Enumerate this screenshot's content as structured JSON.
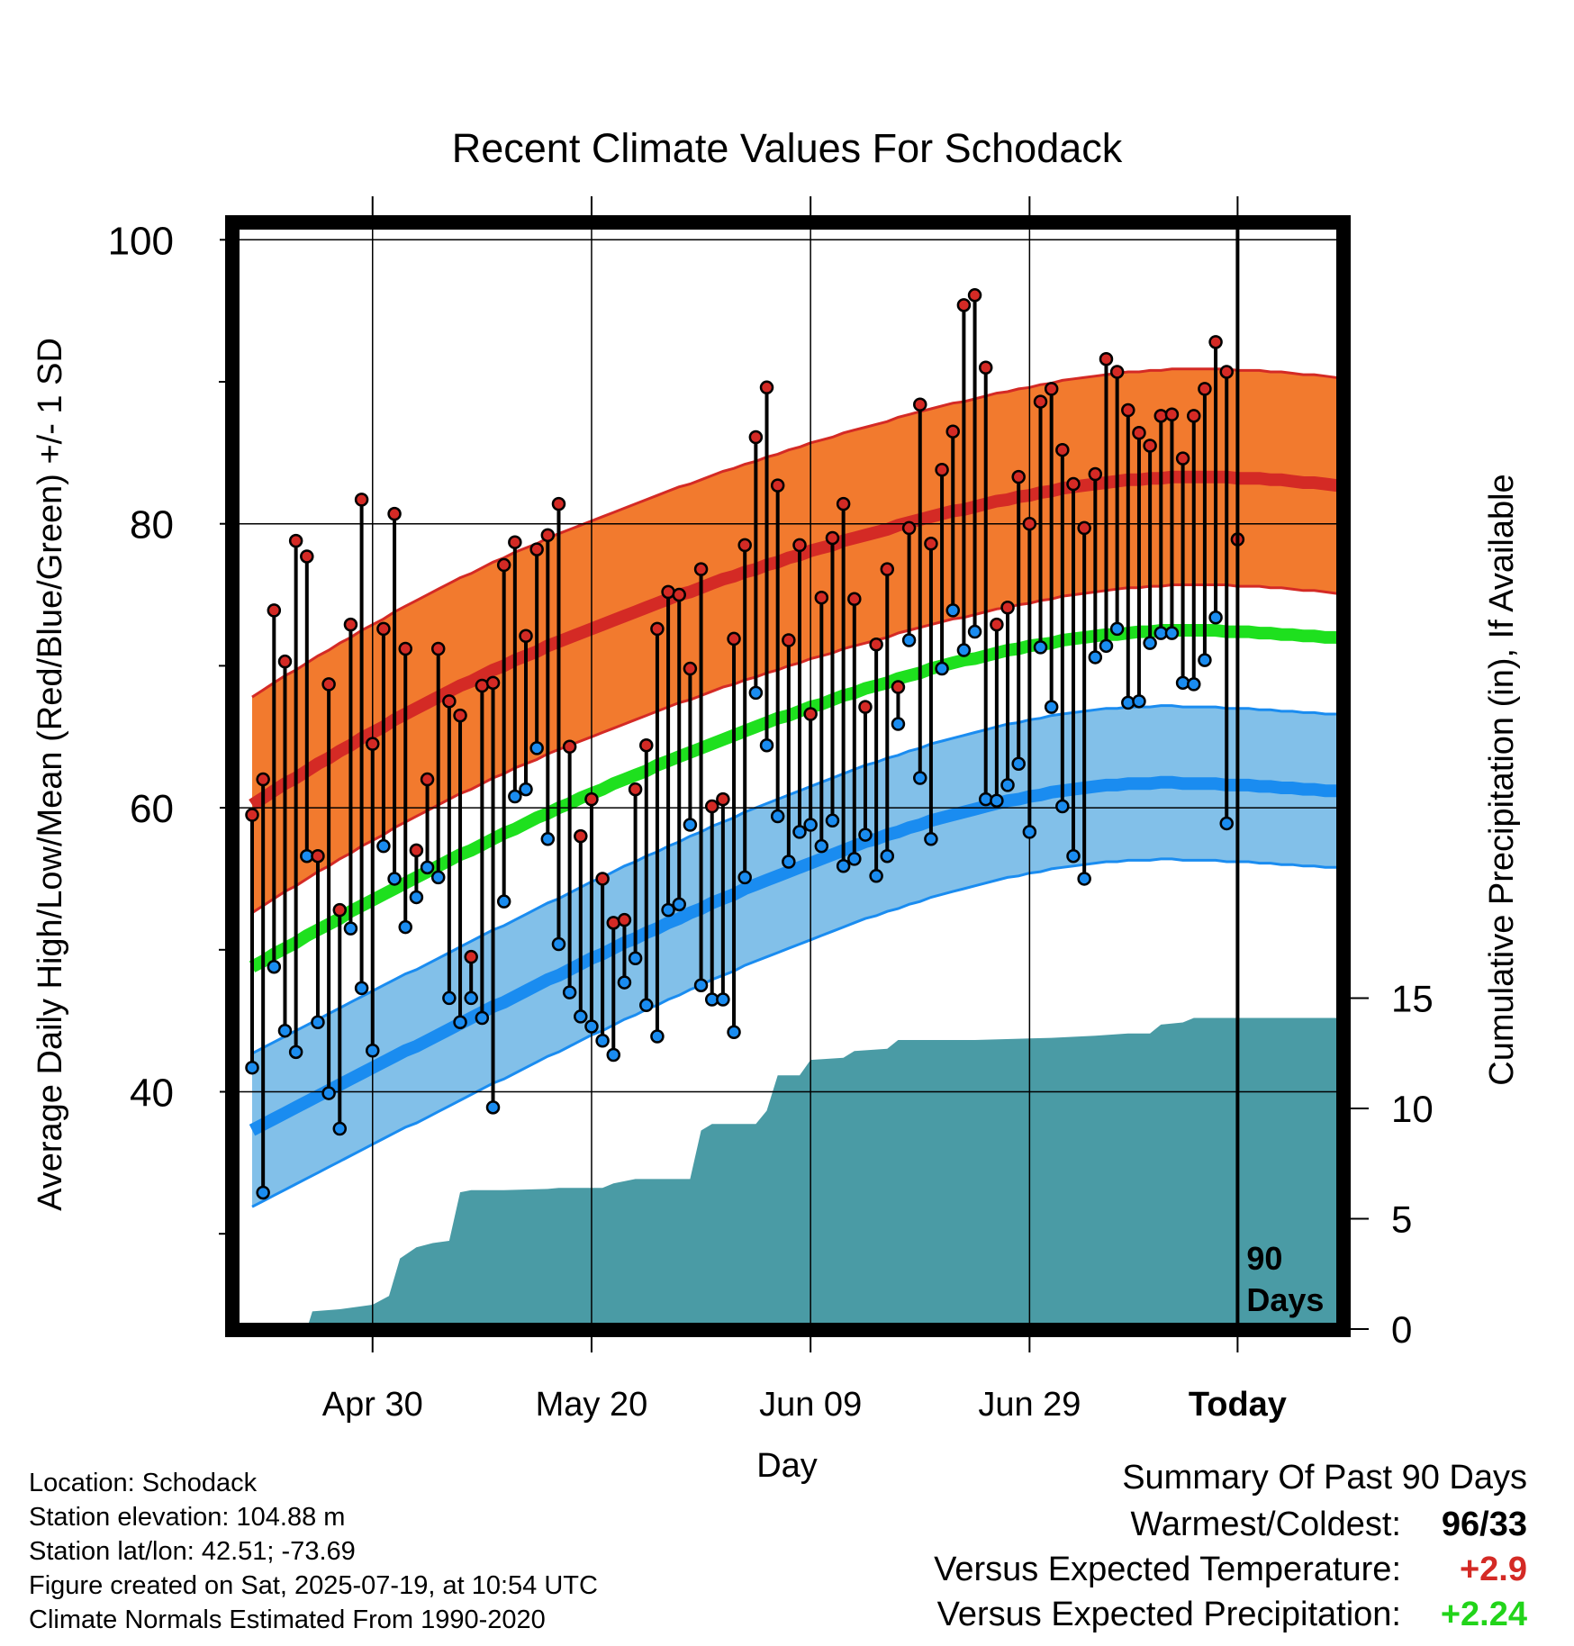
{
  "chart_data": {
    "type": "line",
    "title": "Recent Climate Values For Schodack",
    "xlabel": "Day",
    "ylabel_left": "Average Daily High/Low/Mean (Red/Blue/Green) +/- 1 SD",
    "ylabel_right": "Cumulative Precipitation (in), If Available",
    "x_tick_labels": [
      "Apr 30",
      "May 20",
      "Jun 09",
      "Jun 29",
      "Today"
    ],
    "y_ticks_left": [
      40,
      60,
      80,
      100
    ],
    "y_ticks_right": [
      0,
      5,
      10,
      15
    ],
    "ylim_left": [
      23,
      101.5
    ],
    "ylim_right": [
      0,
      20
    ],
    "period_label": "90 Days",
    "x_axis_unit": "days since first plotted day (day 0 = Apr 19)",
    "xlim": [
      -1,
      100
    ],
    "today_day": 90,
    "daily_high": [
      59.5,
      62,
      73.9,
      70.3,
      78.8,
      77.7,
      56.6,
      68.7,
      52.8,
      72.9,
      81.7,
      64.5,
      72.6,
      80.7,
      71.2,
      57,
      62,
      71.2,
      67.5,
      66.5,
      49.5,
      68.6,
      68.8,
      77.1,
      78.7,
      72.1,
      78.2,
      79.2,
      81.4,
      64.3,
      58,
      60.6,
      55,
      51.9,
      52.1,
      61.3,
      64.4,
      72.6,
      75.2,
      75,
      69.8,
      76.8,
      60.1,
      60.6,
      71.9,
      78.5,
      86.1,
      89.6,
      82.7,
      71.8,
      78.5,
      66.6,
      74.8,
      79,
      81.4,
      74.7,
      67.1,
      71.5,
      76.8,
      68.5,
      79.7,
      88.4,
      78.6,
      83.8,
      86.5,
      95.4,
      96.1,
      91,
      72.9,
      74.1,
      83.3,
      80,
      88.6,
      89.5,
      85.2,
      82.8,
      79.7,
      83.5,
      91.6,
      90.7,
      88,
      86.4,
      85.5,
      87.6,
      87.7,
      84.6,
      87.6,
      89.5,
      92.8,
      90.7,
      78.9
    ],
    "daily_low": [
      41.7,
      32.9,
      48.8,
      44.3,
      42.8,
      56.6,
      44.9,
      39.9,
      37.4,
      51.5,
      47.3,
      42.9,
      57.3,
      55,
      51.6,
      53.7,
      55.8,
      55.1,
      46.6,
      44.9,
      46.6,
      45.2,
      38.9,
      53.4,
      60.8,
      61.3,
      64.2,
      57.8,
      50.4,
      47,
      45.3,
      44.6,
      43.6,
      42.6,
      47.7,
      49.4,
      46.1,
      43.9,
      52.8,
      53.2,
      58.8,
      47.5,
      46.5,
      46.5,
      44.2,
      55.1,
      68.1,
      64.4,
      59.4,
      56.2,
      58.3,
      58.8,
      57.3,
      59.1,
      55.9,
      56.4,
      58.1,
      55.2,
      56.6,
      65.9,
      71.8,
      62.1,
      57.8,
      69.8,
      73.9,
      71.1,
      72.4,
      60.6,
      60.5,
      61.6,
      63.1,
      58.3,
      71.3,
      67.1,
      60.1,
      56.6,
      55,
      70.6,
      71.4,
      72.6,
      67.4,
      67.5,
      71.6,
      72.3,
      72.3,
      68.8,
      68.7,
      70.4,
      73.4,
      58.9
    ],
    "normal_high": [
      60.2,
      60.7,
      61.2,
      61.7,
      62.1,
      62.6,
      63.1,
      63.5,
      64,
      64.4,
      64.9,
      65.3,
      65.7,
      66.2,
      66.6,
      67,
      67.4,
      67.8,
      68.2,
      68.6,
      68.9,
      69.3,
      69.7,
      70,
      70.4,
      70.7,
      71,
      71.4,
      71.7,
      72,
      72.3,
      72.6,
      72.9,
      73.2,
      73.5,
      73.8,
      74.1,
      74.4,
      74.7,
      75,
      75.2,
      75.5,
      75.8,
      76.1,
      76.3,
      76.6,
      76.8,
      77.1,
      77.3,
      77.6,
      77.8,
      78.1,
      78.3,
      78.5,
      78.8,
      79,
      79.2,
      79.4,
      79.6,
      79.9,
      80.1,
      80.3,
      80.5,
      80.7,
      80.9,
      81,
      81.2,
      81.4,
      81.6,
      81.7,
      81.9,
      82,
      82.2,
      82.3,
      82.5,
      82.6,
      82.7,
      82.8,
      82.9,
      83,
      83.1,
      83.1,
      83.2,
      83.2,
      83.3,
      83.3,
      83.3,
      83.3,
      83.3,
      83.3,
      83.2,
      83.2,
      83.2,
      83.1,
      83.1,
      83,
      82.9,
      82.9,
      82.8,
      82.7,
      82.6
    ],
    "normal_low": [
      37.3,
      37.7,
      38.1,
      38.5,
      38.9,
      39.3,
      39.7,
      40.1,
      40.5,
      40.9,
      41.3,
      41.7,
      42.1,
      42.5,
      42.9,
      43.2,
      43.6,
      44,
      44.4,
      44.8,
      45.2,
      45.6,
      46,
      46.3,
      46.7,
      47.1,
      47.5,
      47.9,
      48.2,
      48.6,
      49,
      49.4,
      49.7,
      50.1,
      50.5,
      50.8,
      51.2,
      51.5,
      51.9,
      52.2,
      52.6,
      52.9,
      53.3,
      53.6,
      53.9,
      54.3,
      54.6,
      54.9,
      55.2,
      55.5,
      55.8,
      56.1,
      56.4,
      56.7,
      57,
      57.3,
      57.6,
      57.8,
      58.1,
      58.3,
      58.6,
      58.8,
      59.1,
      59.3,
      59.5,
      59.7,
      59.9,
      60.1,
      60.3,
      60.5,
      60.6,
      60.8,
      60.9,
      61.1,
      61.2,
      61.3,
      61.4,
      61.5,
      61.6,
      61.6,
      61.7,
      61.7,
      61.7,
      61.8,
      61.8,
      61.7,
      61.7,
      61.7,
      61.7,
      61.6,
      61.6,
      61.6,
      61.5,
      61.5,
      61.4,
      61.4,
      61.3,
      61.3,
      61.2,
      61.2,
      61.1
    ],
    "normal_mean": [
      48.8,
      49.2,
      49.7,
      50.1,
      50.5,
      51,
      51.4,
      51.8,
      52.2,
      52.7,
      53.1,
      53.5,
      53.9,
      54.3,
      54.7,
      55.1,
      55.5,
      55.9,
      56.3,
      56.7,
      57,
      57.4,
      57.8,
      58.2,
      58.5,
      58.9,
      59.3,
      59.6,
      60,
      60.3,
      60.7,
      61,
      61.3,
      61.7,
      62,
      62.3,
      62.6,
      63,
      63.3,
      63.6,
      63.9,
      64.2,
      64.5,
      64.8,
      65.1,
      65.4,
      65.7,
      66,
      66.3,
      66.5,
      66.8,
      67.1,
      67.3,
      67.6,
      67.9,
      68.1,
      68.4,
      68.6,
      68.8,
      69.1,
      69.3,
      69.5,
      69.8,
      70,
      70.2,
      70.4,
      70.5,
      70.7,
      70.9,
      71.1,
      71.2,
      71.4,
      71.5,
      71.6,
      71.8,
      71.9,
      72,
      72.1,
      72.2,
      72.2,
      72.3,
      72.4,
      72.4,
      72.5,
      72.5,
      72.5,
      72.5,
      72.5,
      72.5,
      72.4,
      72.4,
      72.4,
      72.3,
      72.3,
      72.2,
      72.2,
      72.1,
      72.1,
      72,
      72,
      71.9
    ],
    "sd_high": 7.6,
    "sd_low": 5.4,
    "precip_steps": [
      [
        5,
        0
      ],
      [
        5.5,
        0.8
      ],
      [
        8,
        0.9
      ],
      [
        11,
        1.1
      ],
      [
        12.5,
        1.5
      ],
      [
        13.5,
        3.2
      ],
      [
        15,
        3.7
      ],
      [
        16.5,
        3.9
      ],
      [
        18,
        4
      ],
      [
        19,
        6.2
      ],
      [
        20,
        6.3
      ],
      [
        23,
        6.3
      ],
      [
        27,
        6.35
      ],
      [
        28,
        6.4
      ],
      [
        32,
        6.4
      ],
      [
        33,
        6.6
      ],
      [
        35,
        6.8
      ],
      [
        39,
        6.8
      ],
      [
        40,
        6.8
      ],
      [
        41,
        9
      ],
      [
        42,
        9.3
      ],
      [
        46,
        9.3
      ],
      [
        47,
        9.9
      ],
      [
        48,
        11.5
      ],
      [
        50,
        11.5
      ],
      [
        51,
        12.2
      ],
      [
        54,
        12.3
      ],
      [
        55,
        12.6
      ],
      [
        58,
        12.7
      ],
      [
        59,
        13.1
      ],
      [
        66,
        13.1
      ],
      [
        73,
        13.2
      ],
      [
        77,
        13.3
      ],
      [
        80,
        13.4
      ],
      [
        82,
        13.4
      ],
      [
        83,
        13.8
      ],
      [
        85,
        13.9
      ],
      [
        86,
        14.1
      ],
      [
        91,
        14.1
      ],
      [
        100,
        14.1
      ]
    ]
  },
  "info": {
    "location": "Location: Schodack",
    "elevation": "Station elevation: 104.88 m",
    "latlon": "Station lat/lon: 42.51; -73.69",
    "created": "Figure created on Sat, 2025-07-19, at 10:54 UTC",
    "normals": "Climate Normals Estimated From 1990-2020"
  },
  "summary": {
    "title": "Summary Of Past 90 Days",
    "warm_cold_label": "Warmest/Coldest:",
    "warm": "96",
    "cold": "33",
    "temp_label": "Versus Expected Temperature:",
    "temp_value": "+2.9",
    "precip_label": "Versus Expected Precipitation:",
    "precip_value": "+2.24"
  },
  "colors": {
    "high_band": "#F27A2E",
    "high_line": "#D42A25",
    "mean_line": "#1EE01E",
    "low_band": "#82C0E9",
    "low_line": "#1A8CF0",
    "precip_fill": "#4A9BA5",
    "high_dot": "#D42A25",
    "low_dot": "#1A8CF0",
    "temp_value": "#D42A25",
    "precip_value": "#22D41A"
  }
}
